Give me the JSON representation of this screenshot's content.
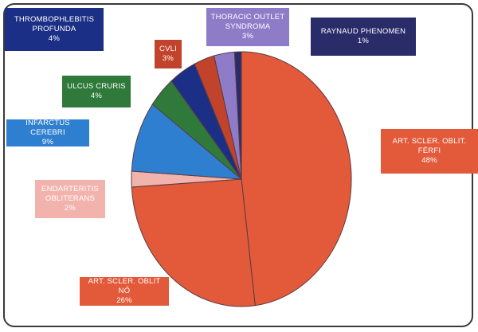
{
  "chart_data": {
    "type": "pie",
    "slices": [
      {
        "label": "ART. SCLER. OBLIT. FÉRFI",
        "value": 48,
        "display": "48%",
        "color": "#e35a3a"
      },
      {
        "label": "ART. SCLER. OBLIT NŐ",
        "value": 26,
        "display": "26%",
        "color": "#e35a3a"
      },
      {
        "label": "ENDARTERITIS OBLITERANS",
        "value": 2,
        "display": "2%",
        "color": "#f2b3ad"
      },
      {
        "label": "INFARCTUS CEREBRI",
        "value": 9,
        "display": "9%",
        "color": "#2f7fd0"
      },
      {
        "label": "ULCUS CRURIS",
        "value": 4,
        "display": "4%",
        "color": "#2f7a3a"
      },
      {
        "label": "THROMBOPHLEBITIS PROFUNDA",
        "value": 4,
        "display": "4%",
        "color": "#1c2f86"
      },
      {
        "label": "CVLI",
        "value": 3,
        "display": "3%",
        "color": "#c2432c"
      },
      {
        "label": "THORACIC OUTLET SYNDROMA",
        "value": 3,
        "display": "3%",
        "color": "#8f7cc9"
      },
      {
        "label": "RAYNAUD PHENOMEN",
        "value": 1,
        "display": "1%",
        "color": "#2a2c6a"
      }
    ]
  }
}
